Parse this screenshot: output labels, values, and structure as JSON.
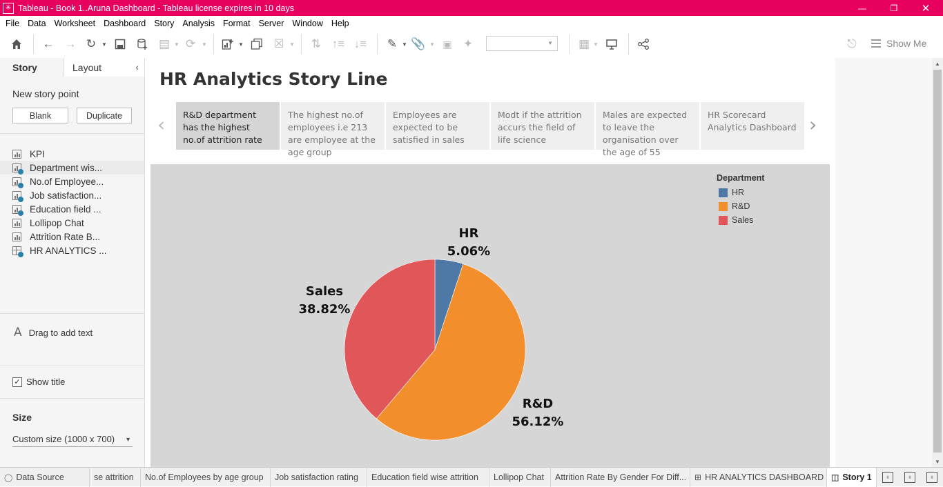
{
  "window": {
    "title": "Tableau - Book 1..Aruna Dashboard - Tableau license expires in 10 days"
  },
  "menu": [
    "File",
    "Data",
    "Worksheet",
    "Dashboard",
    "Story",
    "Analysis",
    "Format",
    "Server",
    "Window",
    "Help"
  ],
  "toolbar": {
    "show_me": "Show Me"
  },
  "sidebar": {
    "tab_story": "Story",
    "tab_layout": "Layout",
    "new_story_point": "New story point",
    "blank_button": "Blank",
    "duplicate_button": "Duplicate",
    "sheets": [
      {
        "label": "KPI",
        "type": "sheet"
      },
      {
        "label": "Department wis...",
        "type": "sheet-used"
      },
      {
        "label": "No.of Employee...",
        "type": "sheet-used"
      },
      {
        "label": "Job satisfaction...",
        "type": "sheet-used"
      },
      {
        "label": "Education field ...",
        "type": "sheet-used"
      },
      {
        "label": "Lollipop Chat",
        "type": "sheet"
      },
      {
        "label": "Attrition Rate B...",
        "type": "sheet"
      },
      {
        "label": "HR ANALYTICS ...",
        "type": "dashboard-used"
      }
    ],
    "drag_text": "Drag to add text",
    "show_title": "Show title",
    "size_label": "Size",
    "size_value": "Custom size (1000 x 700)"
  },
  "story": {
    "title": "HR Analytics Story Line",
    "points": [
      "R&D department has the highest no.of attrition rate",
      "The highest no.of employees i.e 213  are employee at the age group",
      "Employees are expected to be satisfied in sales",
      "Modt if the attrition accurs the field of life science",
      "Males are expected to leave the organisation over the age of 55",
      "HR Scorecard Analytics Dashboard"
    ]
  },
  "chart_data": {
    "type": "pie",
    "legend_title": "Department",
    "legend_position": "top-right",
    "slices": [
      {
        "name": "HR",
        "value": 5.06,
        "label": "5.06%",
        "color": "#4e79a7"
      },
      {
        "name": "R&D",
        "value": 56.12,
        "label": "56.12%",
        "color": "#f28e2b"
      },
      {
        "name": "Sales",
        "value": 38.82,
        "label": "38.82%",
        "color": "#e15759"
      }
    ]
  },
  "bottom_tabs": [
    "Data Source",
    "se attrition",
    "No.of Employees by age group",
    "Job satisfaction rating",
    "Education field wise attrition",
    "Lollipop Chat",
    "Attrition Rate By Gender For Diff...",
    "HR ANALYTICS DASHBOARD",
    "Story 1"
  ]
}
